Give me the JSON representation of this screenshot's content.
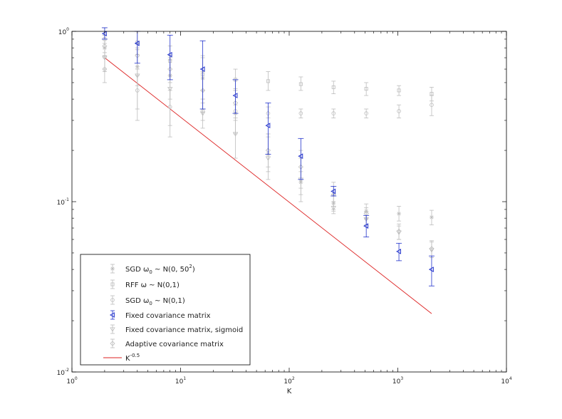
{
  "chart_data": {
    "type": "scatter",
    "xscale": "log",
    "yscale": "log",
    "xlim": [
      1,
      10000
    ],
    "ylim": [
      0.01,
      1
    ],
    "xlabel": "K",
    "ylabel": "",
    "grid": false,
    "legend_position": "bottom-left",
    "x_ticks": [
      {
        "base": "10",
        "exp": "0"
      },
      {
        "base": "10",
        "exp": "1"
      },
      {
        "base": "10",
        "exp": "2"
      },
      {
        "base": "10",
        "exp": "3"
      },
      {
        "base": "10",
        "exp": "4"
      }
    ],
    "y_ticks": [
      {
        "base": "10",
        "exp": "-2"
      },
      {
        "base": "10",
        "exp": "-1"
      },
      {
        "base": "10",
        "exp": "0"
      }
    ],
    "series": [
      {
        "legend": {
          "pre": "SGD ω",
          "sub": "0",
          "mid": " ~ N(0, 50",
          "sup": "2",
          "post": ")"
        },
        "marker": "star",
        "color": "#bdbdbd",
        "points": [
          {
            "x": 2,
            "y": 0.8,
            "lo": 0.6,
            "hi": 0.95
          },
          {
            "x": 4,
            "y": 0.62,
            "lo": 0.48,
            "hi": 0.78
          },
          {
            "x": 8,
            "y": 0.55,
            "lo": 0.4,
            "hi": 0.7
          },
          {
            "x": 16,
            "y": 0.53,
            "lo": 0.4,
            "hi": 0.72
          },
          {
            "x": 32,
            "y": 0.33,
            "lo": 0.25,
            "hi": 0.45
          },
          {
            "x": 64,
            "y": 0.19,
            "lo": 0.15,
            "hi": 0.25
          },
          {
            "x": 128,
            "y": 0.13,
            "lo": 0.11,
            "hi": 0.15
          },
          {
            "x": 256,
            "y": 0.098,
            "lo": 0.088,
            "hi": 0.11
          },
          {
            "x": 512,
            "y": 0.088,
            "lo": 0.08,
            "hi": 0.097
          },
          {
            "x": 1024,
            "y": 0.085,
            "lo": 0.077,
            "hi": 0.094
          },
          {
            "x": 2048,
            "y": 0.081,
            "lo": 0.073,
            "hi": 0.089
          }
        ]
      },
      {
        "legend": {
          "pre": "RFF ω ~ N(0,1)",
          "sub": "",
          "mid": "",
          "sup": "",
          "post": ""
        },
        "marker": "square",
        "color": "#bdbdbd",
        "points": [
          {
            "x": 2,
            "y": 0.9,
            "lo": 0.75,
            "hi": 1.05
          },
          {
            "x": 4,
            "y": 0.86,
            "lo": 0.73,
            "hi": 1.0
          },
          {
            "x": 8,
            "y": 0.67,
            "lo": 0.55,
            "hi": 0.82
          },
          {
            "x": 16,
            "y": 0.56,
            "lo": 0.45,
            "hi": 0.7
          },
          {
            "x": 32,
            "y": 0.52,
            "lo": 0.45,
            "hi": 0.6
          },
          {
            "x": 64,
            "y": 0.51,
            "lo": 0.45,
            "hi": 0.58
          },
          {
            "x": 128,
            "y": 0.49,
            "lo": 0.45,
            "hi": 0.54
          },
          {
            "x": 256,
            "y": 0.47,
            "lo": 0.43,
            "hi": 0.51
          },
          {
            "x": 512,
            "y": 0.46,
            "lo": 0.42,
            "hi": 0.5
          },
          {
            "x": 1024,
            "y": 0.45,
            "lo": 0.42,
            "hi": 0.48
          },
          {
            "x": 2048,
            "y": 0.43,
            "lo": 0.39,
            "hi": 0.47
          }
        ]
      },
      {
        "legend": {
          "pre": "SGD ω",
          "sub": "0",
          "mid": " ~ N(0,1)",
          "sup": "",
          "post": ""
        },
        "marker": "circle",
        "color": "#bdbdbd",
        "points": [
          {
            "x": 2,
            "y": 0.6,
            "lo": 0.5,
            "hi": 0.72
          },
          {
            "x": 4,
            "y": 0.45,
            "lo": 0.35,
            "hi": 0.55
          },
          {
            "x": 8,
            "y": 0.36,
            "lo": 0.28,
            "hi": 0.45
          },
          {
            "x": 16,
            "y": 0.34,
            "lo": 0.3,
            "hi": 0.38
          },
          {
            "x": 32,
            "y": 0.34,
            "lo": 0.31,
            "hi": 0.37
          },
          {
            "x": 64,
            "y": 0.33,
            "lo": 0.31,
            "hi": 0.36
          },
          {
            "x": 128,
            "y": 0.33,
            "lo": 0.31,
            "hi": 0.35
          },
          {
            "x": 256,
            "y": 0.33,
            "lo": 0.31,
            "hi": 0.35
          },
          {
            "x": 512,
            "y": 0.33,
            "lo": 0.31,
            "hi": 0.35
          },
          {
            "x": 1024,
            "y": 0.34,
            "lo": 0.31,
            "hi": 0.37
          },
          {
            "x": 2048,
            "y": 0.37,
            "lo": 0.32,
            "hi": 0.42
          }
        ]
      },
      {
        "legend": {
          "pre": "Fixed covariance matrix",
          "sub": "",
          "mid": "",
          "sup": "",
          "post": ""
        },
        "marker": "triangle-left",
        "color": "#2233cc",
        "points": [
          {
            "x": 2,
            "y": 0.97,
            "lo": 0.9,
            "hi": 1.05
          },
          {
            "x": 4,
            "y": 0.85,
            "lo": 0.65,
            "hi": 1.0
          },
          {
            "x": 8,
            "y": 0.73,
            "lo": 0.52,
            "hi": 0.95
          },
          {
            "x": 16,
            "y": 0.6,
            "lo": 0.35,
            "hi": 0.88
          },
          {
            "x": 32,
            "y": 0.42,
            "lo": 0.33,
            "hi": 0.52
          },
          {
            "x": 64,
            "y": 0.28,
            "lo": 0.19,
            "hi": 0.38
          },
          {
            "x": 128,
            "y": 0.185,
            "lo": 0.135,
            "hi": 0.235
          },
          {
            "x": 256,
            "y": 0.115,
            "lo": 0.108,
            "hi": 0.123
          },
          {
            "x": 512,
            "y": 0.072,
            "lo": 0.062,
            "hi": 0.083
          },
          {
            "x": 1024,
            "y": 0.051,
            "lo": 0.045,
            "hi": 0.057
          },
          {
            "x": 2048,
            "y": 0.04,
            "lo": 0.032,
            "hi": 0.048
          }
        ]
      },
      {
        "legend": {
          "pre": "Fixed covariance matrix, sigmoid",
          "sub": "",
          "mid": "",
          "sup": "",
          "post": ""
        },
        "marker": "triangle-down",
        "color": "#bdbdbd",
        "points": [
          {
            "x": 2,
            "y": 0.7,
            "lo": 0.58,
            "hi": 0.85
          },
          {
            "x": 4,
            "y": 0.55,
            "lo": 0.3,
            "hi": 0.8
          },
          {
            "x": 8,
            "y": 0.46,
            "lo": 0.24,
            "hi": 0.68
          },
          {
            "x": 16,
            "y": 0.33,
            "lo": 0.27,
            "hi": 0.4
          },
          {
            "x": 32,
            "y": 0.25,
            "lo": 0.18,
            "hi": 0.33
          },
          {
            "x": 64,
            "y": 0.18,
            "lo": 0.135,
            "hi": 0.24
          },
          {
            "x": 128,
            "y": 0.135,
            "lo": 0.1,
            "hi": 0.18
          },
          {
            "x": 256,
            "y": 0.092,
            "lo": 0.085,
            "hi": 0.1
          },
          {
            "x": 512,
            "y": 0.079,
            "lo": 0.073,
            "hi": 0.087
          },
          {
            "x": 1024,
            "y": 0.066,
            "lo": 0.06,
            "hi": 0.072
          },
          {
            "x": 2048,
            "y": 0.052,
            "lo": 0.047,
            "hi": 0.058
          }
        ]
      },
      {
        "legend": {
          "pre": "Adaptive covariance matrix",
          "sub": "",
          "mid": "",
          "sup": "",
          "post": ""
        },
        "marker": "diamond",
        "color": "#bdbdbd",
        "points": [
          {
            "x": 2,
            "y": 0.82,
            "lo": 0.7,
            "hi": 0.95
          },
          {
            "x": 4,
            "y": 0.72,
            "lo": 0.6,
            "hi": 0.85
          },
          {
            "x": 8,
            "y": 0.6,
            "lo": 0.5,
            "hi": 0.72
          },
          {
            "x": 16,
            "y": 0.45,
            "lo": 0.35,
            "hi": 0.58
          },
          {
            "x": 32,
            "y": 0.38,
            "lo": 0.3,
            "hi": 0.46
          },
          {
            "x": 64,
            "y": 0.2,
            "lo": 0.16,
            "hi": 0.25
          },
          {
            "x": 128,
            "y": 0.16,
            "lo": 0.12,
            "hi": 0.2
          },
          {
            "x": 256,
            "y": 0.11,
            "lo": 0.09,
            "hi": 0.13
          },
          {
            "x": 512,
            "y": 0.085,
            "lo": 0.079,
            "hi": 0.092
          },
          {
            "x": 1024,
            "y": 0.067,
            "lo": 0.06,
            "hi": 0.074
          },
          {
            "x": 2048,
            "y": 0.053,
            "lo": 0.047,
            "hi": 0.059
          }
        ]
      }
    ],
    "reference_line": {
      "legend": {
        "base": "K",
        "sup": "-0.5"
      },
      "color": "#dd2222",
      "x": [
        2,
        2048
      ],
      "y": [
        0.7,
        0.022
      ]
    }
  }
}
